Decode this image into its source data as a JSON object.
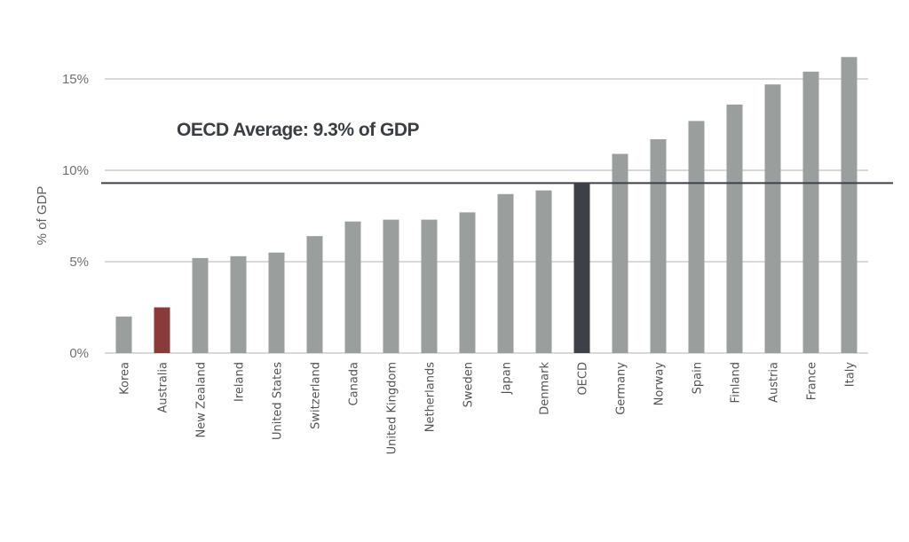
{
  "chart_data": {
    "type": "bar",
    "title": "",
    "xlabel": "",
    "ylabel": "% of GDP",
    "ylim": [
      0,
      16.5
    ],
    "yticks": [
      0,
      5,
      10,
      15
    ],
    "ytick_labels": [
      "0%",
      "5%",
      "10%",
      "15%"
    ],
    "grid": true,
    "categories": [
      "Korea",
      "Australia",
      "New Zealand",
      "Ireland",
      "United States",
      "Switzerland",
      "Canada",
      "United Kingdom",
      "Netherlands",
      "Sweden",
      "Japan",
      "Denmark",
      "OECD",
      "Germany",
      "Norway",
      "Spain",
      "Finland",
      "Austria",
      "France",
      "Italy"
    ],
    "values": [
      2.0,
      2.5,
      5.2,
      5.3,
      5.5,
      6.4,
      7.2,
      7.3,
      7.3,
      7.7,
      8.7,
      8.9,
      9.3,
      10.9,
      11.7,
      12.7,
      13.6,
      14.7,
      15.4,
      16.2
    ],
    "highlight": {
      "Australia": "#8b3a3a",
      "OECD": "#3d4049"
    },
    "default_color": "#9a9f9e",
    "reference_line": {
      "value": 9.3,
      "label": "OECD Average: 9.3% of GDP",
      "color": "#3d4049"
    },
    "legend": "none"
  }
}
